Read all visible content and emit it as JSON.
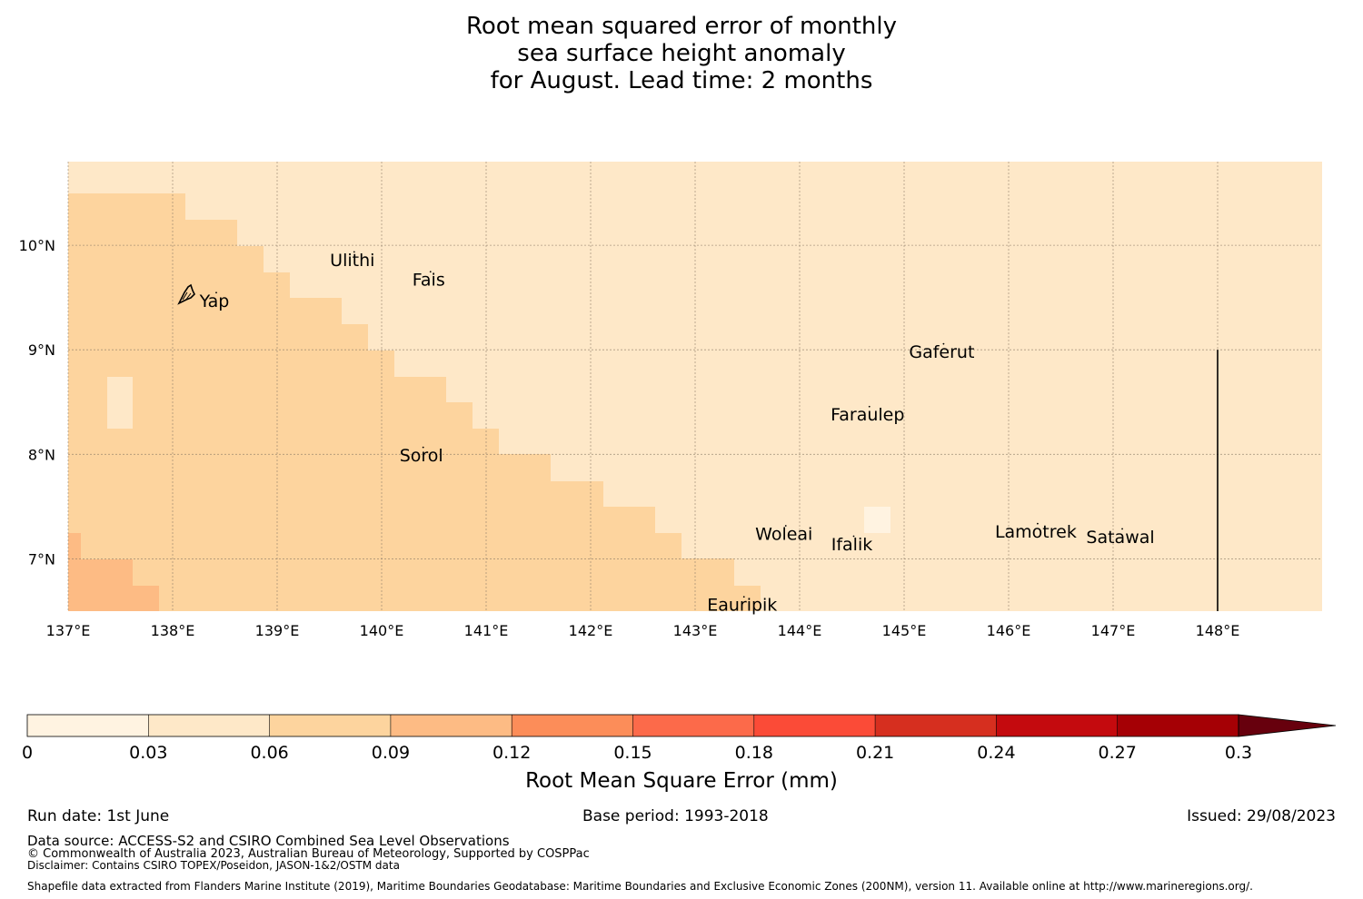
{
  "title": {
    "line1": "Root mean squared error of monthly",
    "line2": "sea surface height anomaly",
    "line3": "for August. Lead time: 2 months"
  },
  "map": {
    "lon_range": [
      137.0,
      149.0
    ],
    "lat_range": [
      6.5,
      10.8
    ],
    "lon_ticks": [
      {
        "value": 137,
        "label": "137°E"
      },
      {
        "value": 138,
        "label": "138°E"
      },
      {
        "value": 139,
        "label": "139°E"
      },
      {
        "value": 140,
        "label": "140°E"
      },
      {
        "value": 141,
        "label": "141°E"
      },
      {
        "value": 142,
        "label": "142°E"
      },
      {
        "value": 143,
        "label": "143°E"
      },
      {
        "value": 144,
        "label": "144°E"
      },
      {
        "value": 145,
        "label": "145°E"
      },
      {
        "value": 146,
        "label": "146°E"
      },
      {
        "value": 147,
        "label": "147°E"
      },
      {
        "value": 148,
        "label": "148°E"
      }
    ],
    "lat_ticks": [
      {
        "value": 10,
        "label": "10°N"
      },
      {
        "value": 9,
        "label": "9°N"
      },
      {
        "value": 8,
        "label": "8°N"
      },
      {
        "value": 7,
        "label": "7°N"
      }
    ],
    "cell_colors": {
      "low": "#fee8c8",
      "mid": "#fdd49e",
      "high": "#fdbb84",
      "lowest": "#fff3e1"
    },
    "places": [
      {
        "name": "Ulithi",
        "lon": 139.72,
        "lat": 9.85
      },
      {
        "name": "Fais",
        "lon": 140.45,
        "lat": 9.66
      },
      {
        "name": "Yap",
        "lon": 138.4,
        "lat": 9.46
      },
      {
        "name": "Gaferut",
        "lon": 145.36,
        "lat": 8.97
      },
      {
        "name": "Faraulep",
        "lon": 144.65,
        "lat": 8.37
      },
      {
        "name": "Sorol",
        "lon": 140.38,
        "lat": 7.98
      },
      {
        "name": "Woleai",
        "lon": 143.85,
        "lat": 7.23
      },
      {
        "name": "Ifalik",
        "lon": 144.5,
        "lat": 7.13
      },
      {
        "name": "Lamotrek",
        "lon": 146.26,
        "lat": 7.25
      },
      {
        "name": "Satawal",
        "lon": 147.07,
        "lat": 7.2
      },
      {
        "name": "Eauripik",
        "lon": 143.45,
        "lat": 6.55
      }
    ],
    "boundary_line": {
      "lon": 148.0,
      "lat_from": 9.0,
      "lat_to": 6.5
    }
  },
  "colorbar": {
    "label": "Root Mean Square Error (mm)",
    "ticks": [
      "0",
      "0.03",
      "0.06",
      "0.09",
      "0.12",
      "0.15",
      "0.18",
      "0.21",
      "0.24",
      "0.27",
      "0.3"
    ],
    "colors": [
      "#fff3e1",
      "#fee8c8",
      "#fdd49e",
      "#fdbb84",
      "#fc8d59",
      "#fc6a4a",
      "#fb4b37",
      "#d62f1f",
      "#c40a0e",
      "#a50005"
    ],
    "extend_color": "#67000d"
  },
  "footer": {
    "run_date": "Run date: 1st June",
    "base_period": "Base period: 1993-2018",
    "issued": "Issued: 29/08/2023",
    "data_source": "Data source: ACCESS-S2 and CSIRO Combined Sea Level Observations",
    "copyright": "© Commonwealth of Australia 2023, Australian Bureau of Meteorology, Supported by COSPPac",
    "disclaimer": "Disclaimer: Contains CSIRO TOPEX/Poseidon, JASON-1&2/OSTM data",
    "shapefile": "Shapefile data extracted from Flanders Marine Institute (2019), Maritime Boundaries Geodatabase: Maritime Boundaries and Exclusive Economic Zones (200NM), version 11. Available online at http://www.marineregions.org/."
  }
}
